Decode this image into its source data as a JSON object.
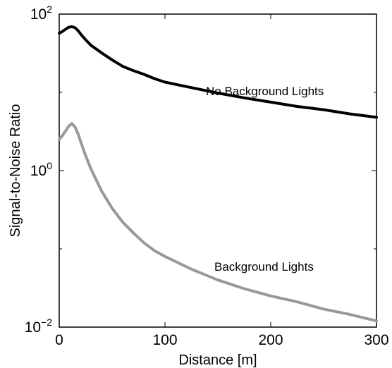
{
  "chart_data": {
    "type": "line",
    "xlabel": "Distance [m]",
    "ylabel": "Signal-to-Noise Ratio",
    "xlim": [
      0,
      300
    ],
    "ylim": [
      0.01,
      100
    ],
    "yscale": "log",
    "grid": false,
    "x_ticks": [
      0,
      100,
      200,
      300
    ],
    "x_tick_labels": [
      "0",
      "100",
      "200",
      "300"
    ],
    "y_ticks": [
      {
        "value": 0.01,
        "base": "10",
        "exp": "−2"
      },
      {
        "value": 1,
        "base": "10",
        "exp": "0"
      },
      {
        "value": 100,
        "base": "10",
        "exp": "2"
      }
    ],
    "series": [
      {
        "name": "No Background Lights",
        "color": "#000000",
        "x": [
          0,
          3,
          6,
          9,
          12,
          15,
          18,
          21,
          25,
          30,
          40,
          50,
          60,
          70,
          80,
          90,
          100,
          125,
          150,
          175,
          200,
          225,
          250,
          275,
          300
        ],
        "y": [
          57,
          60,
          64,
          68,
          69,
          67,
          61,
          54,
          47,
          40,
          32,
          26,
          21.5,
          19,
          17,
          15,
          13.5,
          11.5,
          9.8,
          8.5,
          7.5,
          6.6,
          6.0,
          5.3,
          4.8
        ]
      },
      {
        "name": "Background Lights",
        "color": "#999999",
        "x": [
          0,
          3,
          6,
          9,
          12,
          15,
          18,
          21,
          25,
          30,
          40,
          50,
          60,
          70,
          80,
          90,
          100,
          125,
          150,
          175,
          200,
          225,
          250,
          275,
          300
        ],
        "y": [
          2.5,
          2.8,
          3.2,
          3.7,
          4.0,
          3.6,
          2.9,
          2.2,
          1.55,
          1.05,
          0.55,
          0.33,
          0.22,
          0.16,
          0.12,
          0.095,
          0.08,
          0.055,
          0.04,
          0.031,
          0.025,
          0.021,
          0.017,
          0.0145,
          0.012
        ]
      }
    ],
    "annotations": [
      {
        "text": "No Background Lights",
        "series": 0
      },
      {
        "text": "Background Lights",
        "series": 1
      }
    ]
  }
}
